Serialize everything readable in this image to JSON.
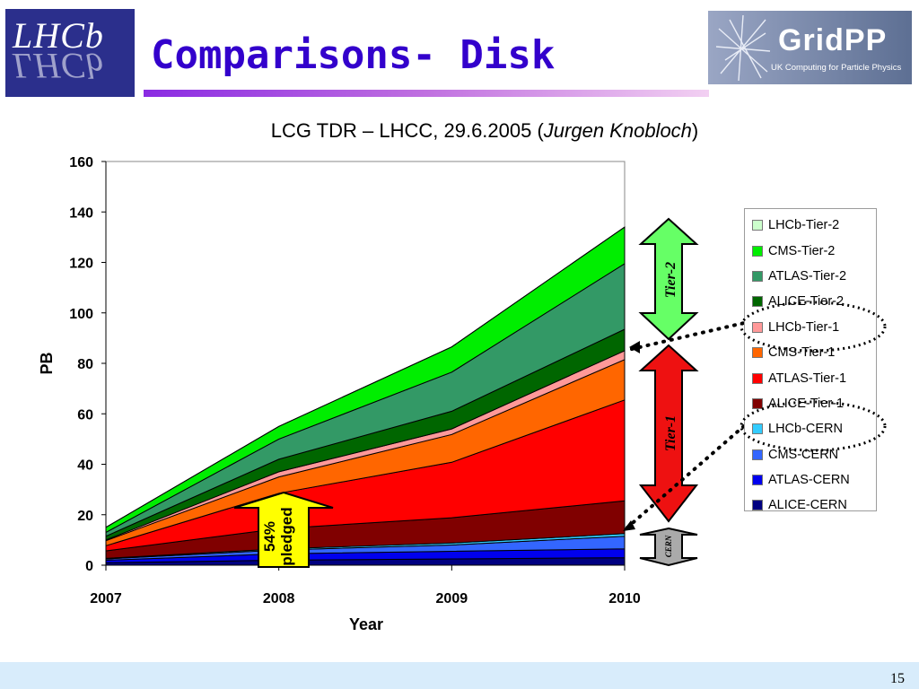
{
  "header": {
    "lhcb_logo_text": "LHCb",
    "title": "Comparisons- Disk",
    "gridpp_logo_text": "GridPP",
    "gridpp_logo_subtitle": "UK Computing for Particle Physics"
  },
  "subtitle": {
    "main": "LCG TDR – LHCC, 29.6.2005 (",
    "author": "Jurgen Knobloch",
    "close": ")"
  },
  "annotations": {
    "pledged_pct": "54%",
    "pledged_word": "pledged",
    "tier2_arrow": "Tier-2",
    "tier1_arrow": "Tier-1",
    "cern_arrow": "CERN"
  },
  "footer": {
    "page_number": "15"
  },
  "colors": {
    "footer_bar": "#d8ecfb",
    "title": "#3300cc",
    "arrow_tier2": "#66ff66",
    "arrow_tier1": "#ee1111",
    "arrow_cern": "#aaaaaa",
    "pledged_arrow": "#ffff00"
  },
  "chart_data": {
    "type": "area",
    "stacked": true,
    "x": [
      2007,
      2008,
      2009,
      2010
    ],
    "x_tick_labels": [
      "2007",
      "2008",
      "2009",
      "2010"
    ],
    "xlabel": "Year",
    "ylabel": "PB",
    "ylim": [
      0,
      160
    ],
    "y_ticks": [
      0,
      20,
      40,
      60,
      80,
      100,
      120,
      140,
      160
    ],
    "grid": false,
    "legend_position": "right",
    "series": [
      {
        "name": "ALICE-CERN",
        "color": "#000080",
        "values": [
          1.0,
          2.0,
          2.5,
          3.0
        ]
      },
      {
        "name": "ATLAS-CERN",
        "color": "#0000ee",
        "values": [
          1.0,
          2.5,
          3.0,
          3.5
        ]
      },
      {
        "name": "CMS-CERN",
        "color": "#3366ff",
        "values": [
          0.5,
          1.5,
          2.5,
          5.0
        ]
      },
      {
        "name": "LHCb-CERN",
        "color": "#33ccff",
        "values": [
          0.2,
          0.5,
          0.8,
          1.0
        ]
      },
      {
        "name": "ALICE-Tier-1",
        "color": "#800000",
        "values": [
          3.0,
          8.0,
          10.0,
          13.0
        ]
      },
      {
        "name": "ATLAS-Tier-1",
        "color": "#ff0000",
        "values": [
          2.0,
          14.0,
          22.0,
          40.0
        ]
      },
      {
        "name": "CMS-Tier-1",
        "color": "#ff6600",
        "values": [
          2.0,
          6.5,
          11.0,
          16.0
        ]
      },
      {
        "name": "LHCb-Tier-1",
        "color": "#ff9999",
        "values": [
          0.3,
          2.0,
          2.2,
          3.5
        ]
      },
      {
        "name": "ALICE-Tier-2",
        "color": "#006600",
        "values": [
          1.5,
          5.0,
          7.0,
          8.5
        ]
      },
      {
        "name": "ATLAS-Tier-2",
        "color": "#339966",
        "values": [
          1.5,
          8.0,
          15.5,
          26.0
        ]
      },
      {
        "name": "CMS-Tier-2",
        "color": "#00ee00",
        "values": [
          2.0,
          5.0,
          10.0,
          14.5
        ]
      },
      {
        "name": "LHCb-Tier-2",
        "color": "#ccffcc",
        "values": [
          0.0,
          0.0,
          0.0,
          0.0
        ]
      }
    ]
  }
}
